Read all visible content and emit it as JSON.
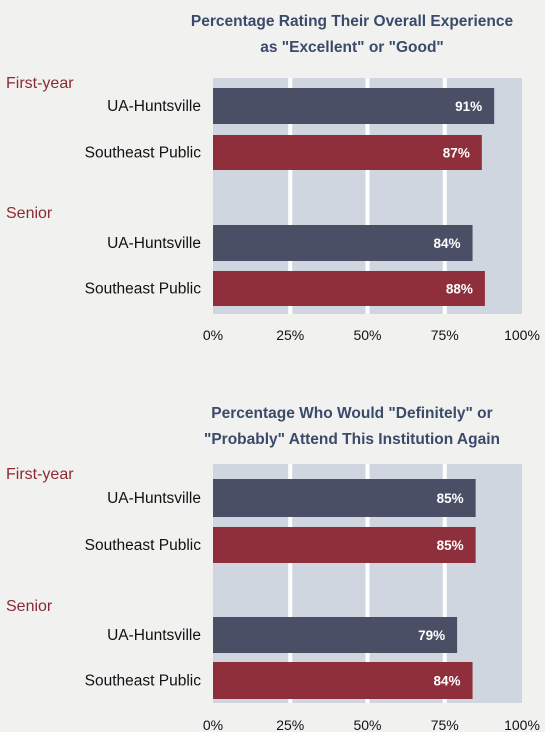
{
  "colors": {
    "ua_huntsville": "#4a4f66",
    "southeast_public": "#8f2f3c",
    "plot_background": "#cfd6df",
    "gridline": "#ffffff",
    "group_label": "#8b2a35",
    "title": "#3a4a6a"
  },
  "chart_data": [
    {
      "type": "bar",
      "orientation": "horizontal",
      "title_lines": [
        "Percentage Rating Their Overall Experience",
        "as \"Excellent\" or \"Good\""
      ],
      "groups": [
        {
          "label": "First-year",
          "bars": [
            {
              "category": "UA-Huntsville",
              "value": 91,
              "label": "91%",
              "color_key": "ua_huntsville"
            },
            {
              "category": "Southeast Public",
              "value": 87,
              "label": "87%",
              "color_key": "southeast_public"
            }
          ]
        },
        {
          "label": "Senior",
          "bars": [
            {
              "category": "UA-Huntsville",
              "value": 84,
              "label": "84%",
              "color_key": "ua_huntsville"
            },
            {
              "category": "Southeast Public",
              "value": 88,
              "label": "88%",
              "color_key": "southeast_public"
            }
          ]
        }
      ],
      "xlim": [
        0,
        100
      ],
      "xticks": [
        "0%",
        "25%",
        "50%",
        "75%",
        "100%"
      ],
      "grid": true,
      "legend": "none"
    },
    {
      "type": "bar",
      "orientation": "horizontal",
      "title_lines": [
        "Percentage Who Would \"Definitely\" or",
        "\"Probably\" Attend This Institution Again"
      ],
      "groups": [
        {
          "label": "First-year",
          "bars": [
            {
              "category": "UA-Huntsville",
              "value": 85,
              "label": "85%",
              "color_key": "ua_huntsville"
            },
            {
              "category": "Southeast Public",
              "value": 85,
              "label": "85%",
              "color_key": "southeast_public"
            }
          ]
        },
        {
          "label": "Senior",
          "bars": [
            {
              "category": "UA-Huntsville",
              "value": 79,
              "label": "79%",
              "color_key": "ua_huntsville"
            },
            {
              "category": "Southeast Public",
              "value": 84,
              "label": "84%",
              "color_key": "southeast_public"
            }
          ]
        }
      ],
      "xlim": [
        0,
        100
      ],
      "xticks": [
        "0%",
        "25%",
        "50%",
        "75%",
        "100%"
      ],
      "grid": true,
      "legend": "none"
    }
  ]
}
